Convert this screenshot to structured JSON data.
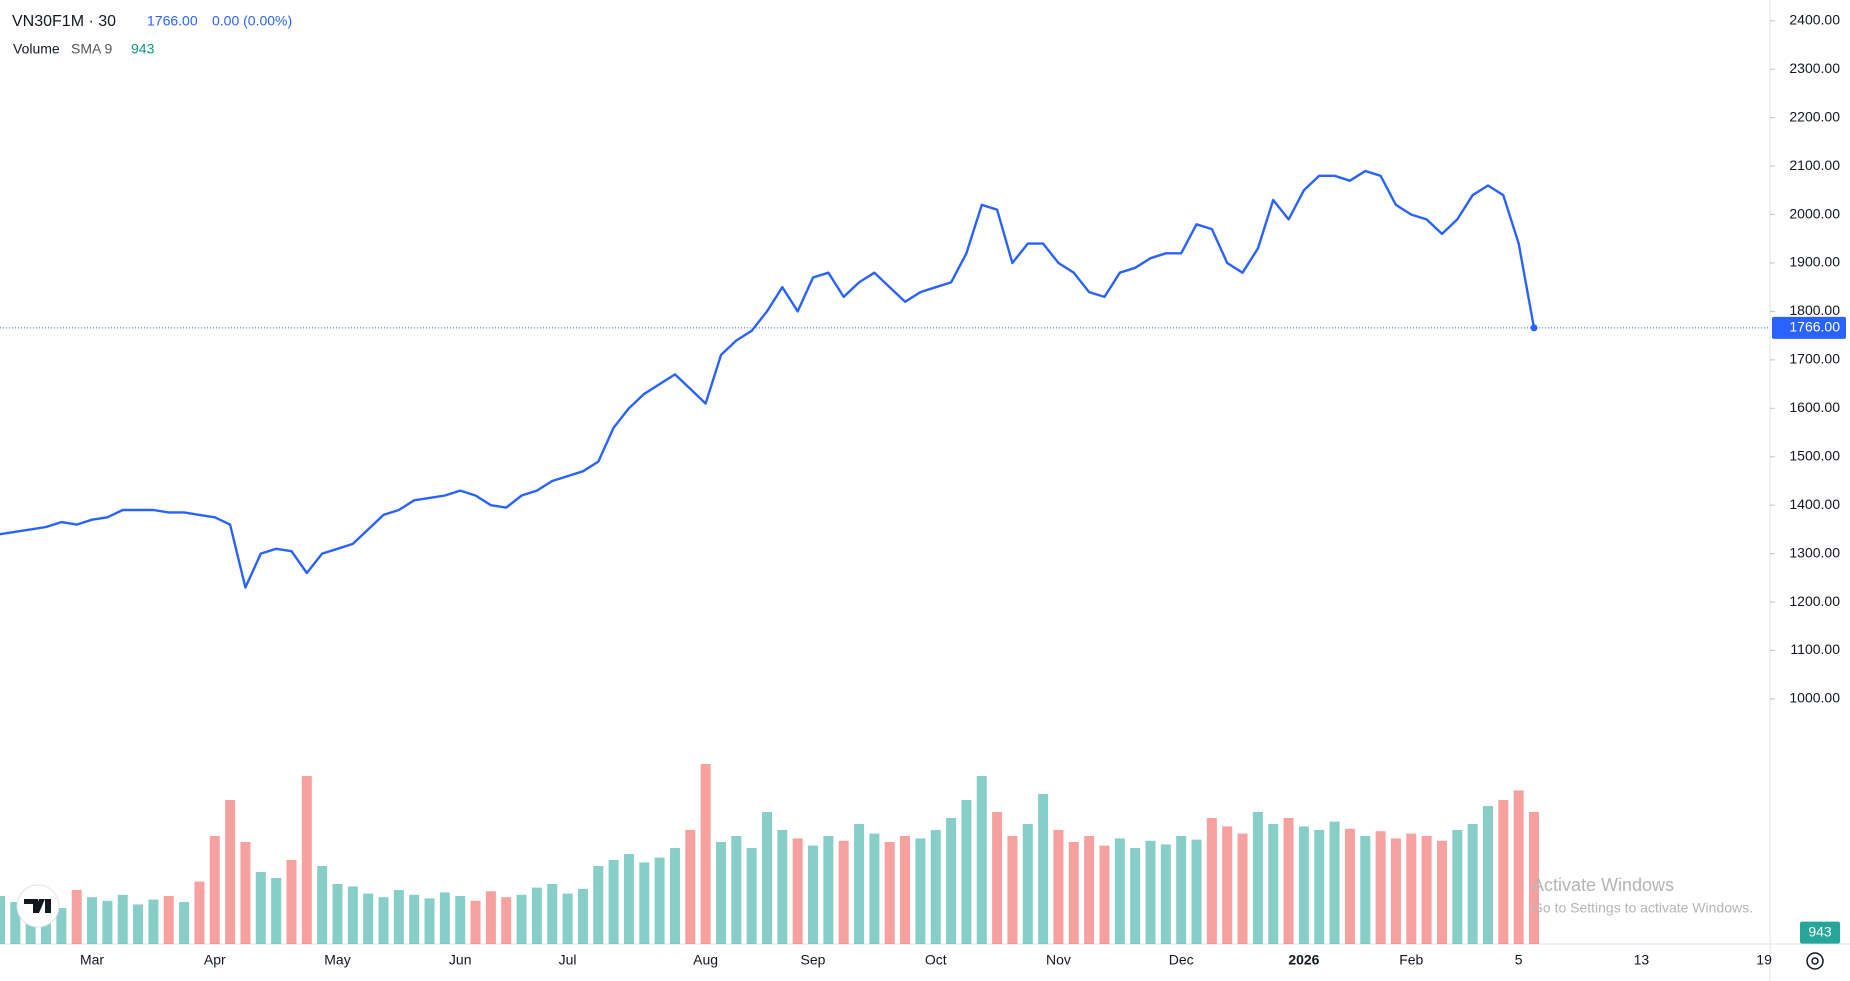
{
  "chart_data": {
    "type": "line",
    "symbol": "VN30F1M · 30",
    "change": "0.00 (0.00%)",
    "volume_title": "Volume",
    "sma_title": "SMA 9",
    "sma_value": 943,
    "price_label": {
      "value": 1766,
      "label": "1766.00"
    },
    "color": "#2962ff",
    "categories": [
      null,
      null,
      null,
      null,
      null,
      null,
      "Mar",
      null,
      null,
      null,
      null,
      null,
      null,
      null,
      "Apr",
      null,
      null,
      null,
      null,
      null,
      null,
      null,
      "May",
      null,
      null,
      null,
      null,
      null,
      null,
      null,
      "Jun",
      null,
      null,
      null,
      null,
      null,
      null,
      "Jul",
      null,
      null,
      null,
      null,
      null,
      null,
      null,
      null,
      "Aug",
      null,
      null,
      null,
      null,
      null,
      null,
      "Sep",
      null,
      null,
      null,
      null,
      null,
      null,
      null,
      "Oct",
      null,
      null,
      null,
      null,
      null,
      null,
      null,
      "Nov",
      null,
      null,
      null,
      null,
      null,
      null,
      null,
      "Dec",
      null,
      null,
      null,
      null,
      null,
      null,
      null,
      "2026",
      null,
      null,
      null,
      null,
      null,
      null,
      "Feb",
      null,
      null,
      null,
      null,
      null,
      null,
      "5",
      null,
      null,
      null,
      null,
      null,
      null,
      null,
      "13",
      null,
      null,
      null,
      null,
      null,
      null,
      null,
      "19"
    ],
    "values": [
      1340,
      1345,
      1350,
      1355,
      1365,
      1360,
      1370,
      1375,
      1390,
      1390,
      1390,
      1385,
      1385,
      1380,
      1375,
      1360,
      1230,
      1300,
      1310,
      1305,
      1260,
      1300,
      1310,
      1320,
      1350,
      1380,
      1390,
      1410,
      1415,
      1420,
      1430,
      1420,
      1400,
      1395,
      1420,
      1430,
      1450,
      1460,
      1470,
      1490,
      1560,
      1600,
      1630,
      1650,
      1670,
      1640,
      1610,
      1710,
      1740,
      1760,
      1800,
      1850,
      1800,
      1870,
      1880,
      1830,
      1860,
      1880,
      1850,
      1820,
      1840,
      1850,
      1860,
      1920,
      2020,
      2010,
      1900,
      1940,
      1940,
      1900,
      1880,
      1840,
      1830,
      1880,
      1890,
      1910,
      1920,
      1920,
      1980,
      1970,
      1900,
      1880,
      1930,
      2030,
      1990,
      2050,
      2080,
      2080,
      2070,
      2090,
      2080,
      2020,
      2000,
      1990,
      1960,
      1990,
      2040,
      2060,
      2040,
      1940,
      1766,
      null,
      null,
      null,
      null,
      null,
      null,
      null,
      null,
      null,
      null,
      null,
      null,
      null,
      null,
      null
    ],
    "ylim": [
      494,
      2443
    ],
    "yticks": [
      {
        "value": 1000,
        "label": "1000.00"
      },
      {
        "value": 1100,
        "label": "1100.00"
      },
      {
        "value": 1200,
        "label": "1200.00"
      },
      {
        "value": 1300,
        "label": "1300.00"
      },
      {
        "value": 1400,
        "label": "1400.00"
      },
      {
        "value": 1500,
        "label": "1500.00"
      },
      {
        "value": 1600,
        "label": "1600.00"
      },
      {
        "value": 1700,
        "label": "1700.00"
      },
      {
        "value": 1800,
        "label": "1800.00"
      },
      {
        "value": 1900,
        "label": "1900.00"
      },
      {
        "value": 2000,
        "label": "2000.00"
      },
      {
        "value": 2100,
        "label": "2100.00"
      },
      {
        "value": 2200,
        "label": "2200.00"
      },
      {
        "value": 2300,
        "label": "2300.00"
      },
      {
        "value": 2400,
        "label": "2400.00"
      }
    ],
    "grid": false,
    "volume": {
      "up_color": "#26a69a",
      "down_color": "#ef5350",
      "lim": [
        0,
        20000
      ],
      "values": [
        4000,
        3500,
        4200,
        3800,
        3000,
        4500,
        3900,
        3600,
        4100,
        3300,
        3700,
        4000,
        3500,
        5200,
        9000,
        12000,
        8500,
        6000,
        5500,
        7000,
        14000,
        6500,
        5000,
        4800,
        4200,
        3900,
        4500,
        4100,
        3800,
        4300,
        4000,
        3600,
        4400,
        3900,
        4100,
        4700,
        5000,
        4200,
        4600,
        6500,
        7000,
        7500,
        6800,
        7200,
        8000,
        9500,
        15000,
        8500,
        9000,
        8000,
        11000,
        9500,
        8800,
        8200,
        9000,
        8600,
        10000,
        9200,
        8500,
        9000,
        8800,
        9500,
        10500,
        12000,
        14000,
        11000,
        9000,
        10000,
        12500,
        9500,
        8500,
        9000,
        8200,
        8800,
        8000,
        8600,
        8300,
        9000,
        8700,
        10500,
        9800,
        9200,
        11000,
        10000,
        10500,
        9800,
        9500,
        10200,
        9600,
        9000,
        9400,
        8800,
        9200,
        9000,
        8600,
        9500,
        10000,
        11500,
        12000,
        12800,
        11000,
        null,
        null,
        null,
        null,
        null,
        null,
        null,
        null,
        null,
        null,
        null,
        null,
        null,
        null,
        null
      ]
    },
    "watermark": {
      "title": "Activate Windows",
      "text": "Go to Settings to activate Windows."
    }
  }
}
